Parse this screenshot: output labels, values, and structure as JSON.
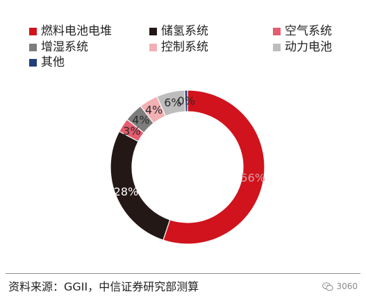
{
  "chart_data": {
    "type": "pie",
    "donut": true,
    "categories": [
      "燃料电池电堆",
      "储氢系统",
      "空气系统",
      "增湿系统",
      "控制系统",
      "动力电池",
      "其他"
    ],
    "values": [
      56,
      28,
      3,
      4,
      4,
      6,
      0
    ],
    "data_labels": [
      "56%",
      "28%",
      "3%",
      "4%",
      "4%",
      "6%",
      "0%"
    ],
    "colors": [
      "#d0131c",
      "#231816",
      "#e55c6e",
      "#7d7d7d",
      "#f2b0b3",
      "#bdbdbd",
      "#1f3f78"
    ],
    "legend_position": "top"
  },
  "source_note": "资料来源：GGII，中信证券研究部测算",
  "watermark": {
    "icon": "wechat-icon",
    "text": "3060"
  }
}
